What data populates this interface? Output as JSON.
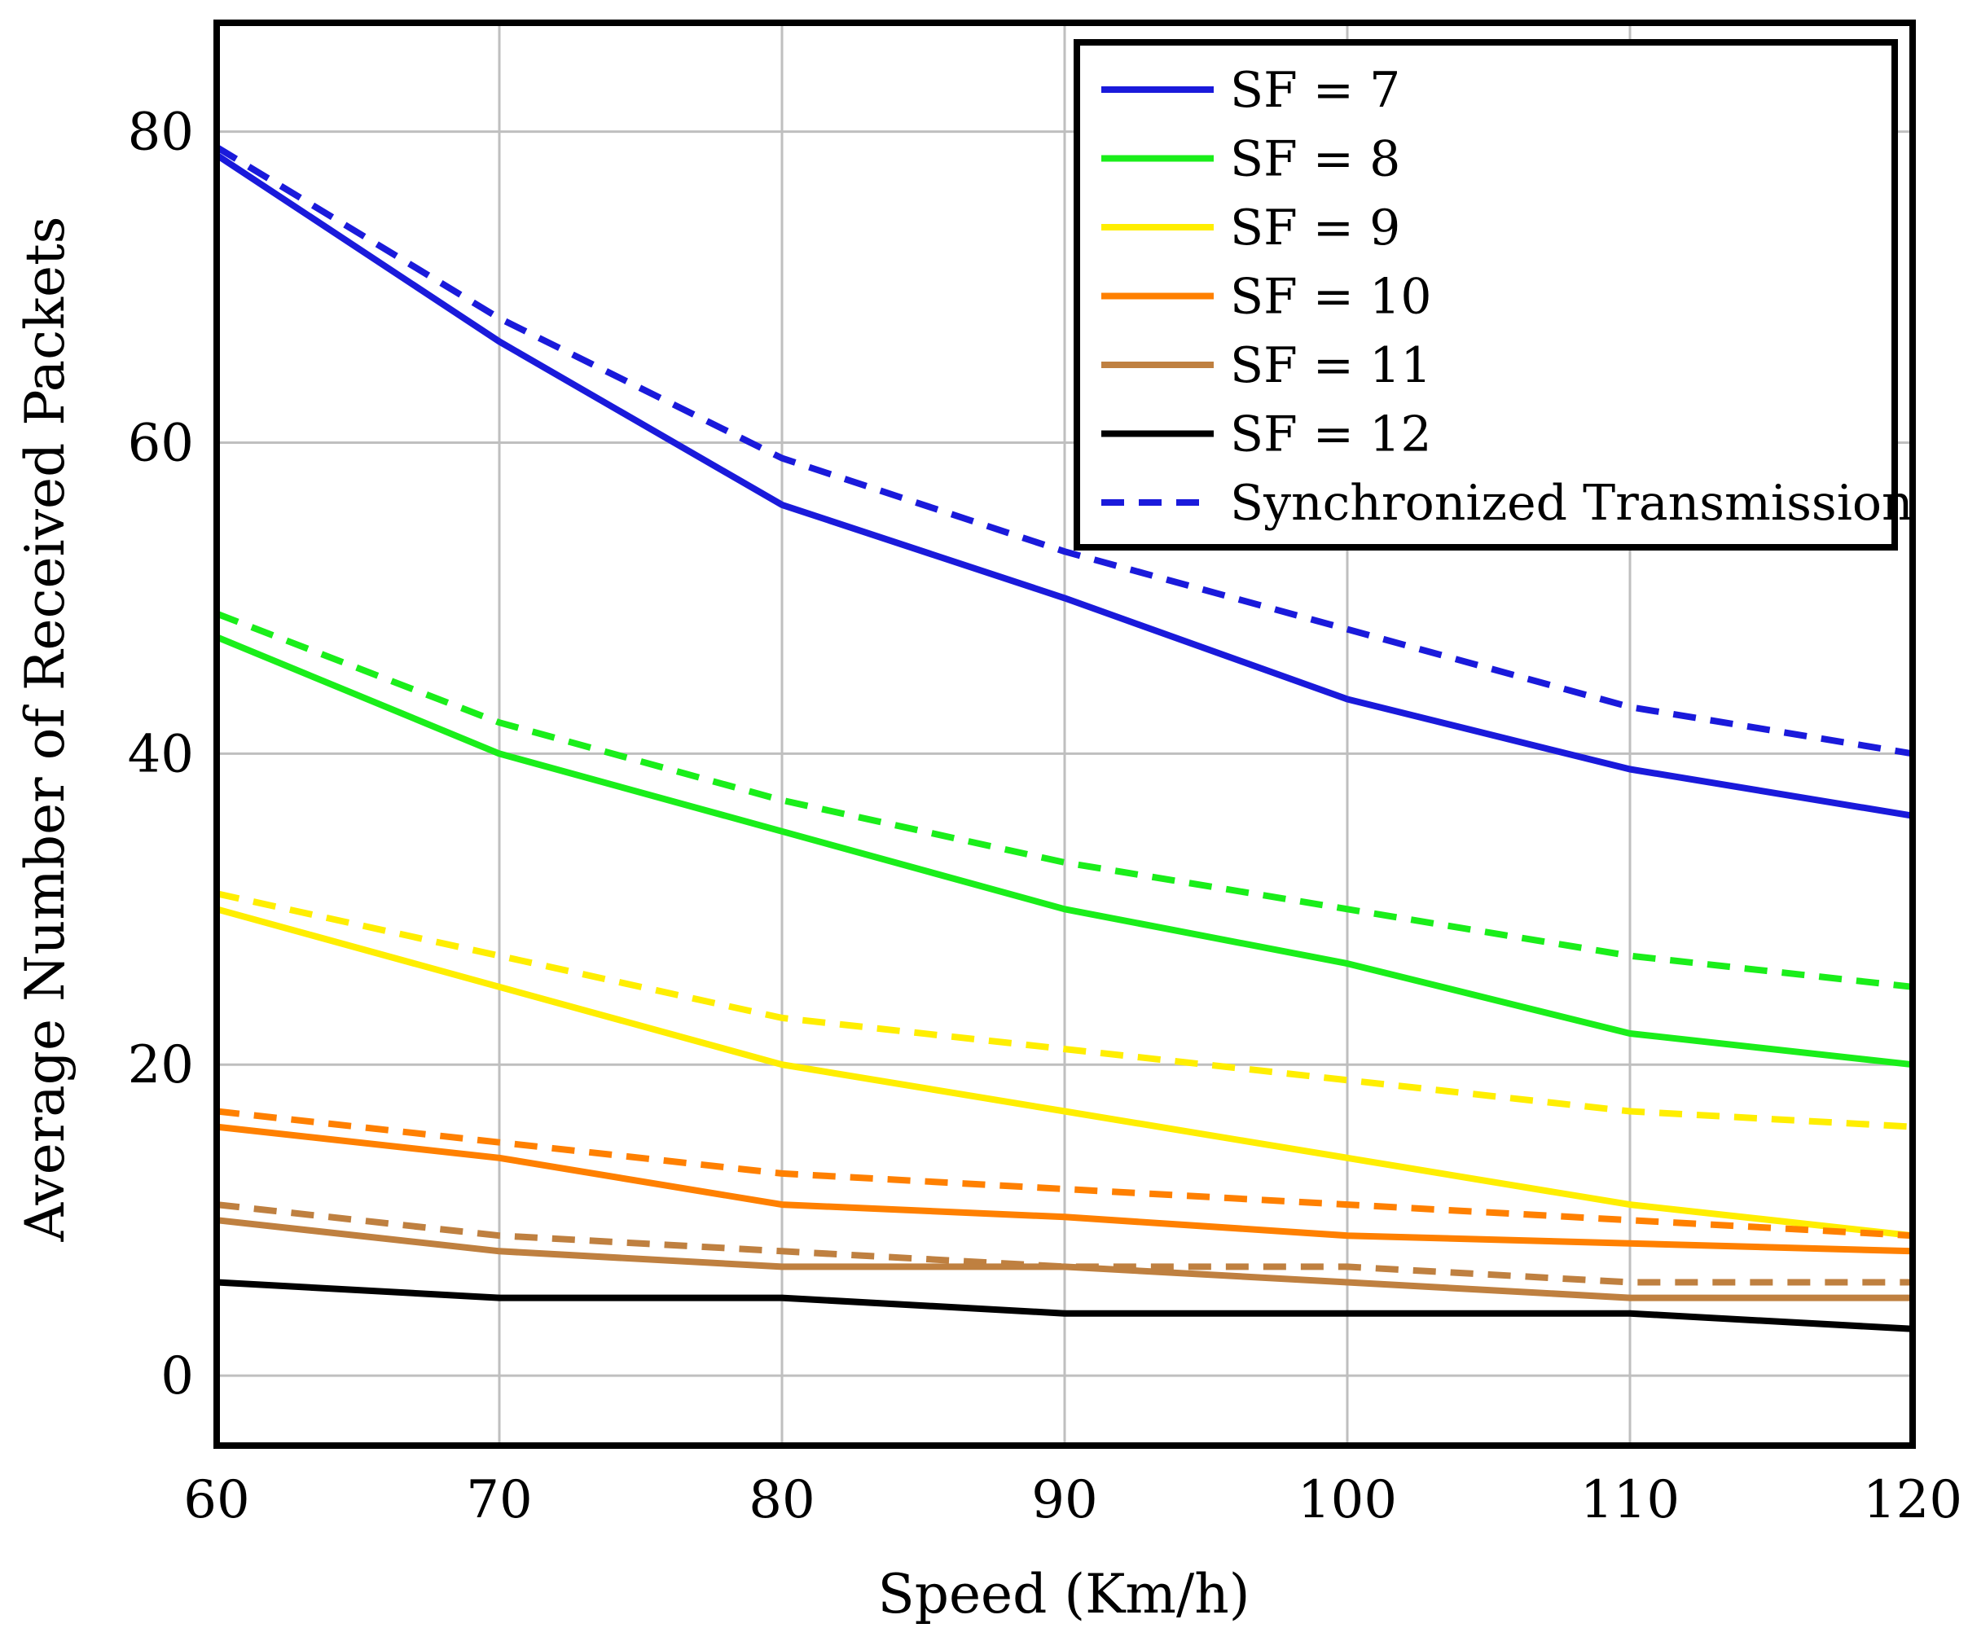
{
  "chart_data": {
    "type": "line",
    "xlabel": "Speed (Km/h)",
    "ylabel": "Average Number of Received Packets",
    "xlim": [
      60,
      120
    ],
    "ylim": [
      -4.5,
      87
    ],
    "grid": true,
    "legend_position": "top-right",
    "x": [
      60,
      70,
      80,
      90,
      100,
      110,
      120
    ],
    "xticks": [
      "60",
      "70",
      "80",
      "90",
      "100",
      "110",
      "120"
    ],
    "yticks": [
      "0",
      "20",
      "40",
      "60",
      "80"
    ],
    "series": [
      {
        "name": "SF = 7",
        "legend": "SF = 7",
        "color": "#1a1adb",
        "style": "solid",
        "values": [
          78.5,
          66.5,
          56,
          50,
          43.5,
          39,
          36
        ]
      },
      {
        "name": "SF = 8",
        "legend": "SF = 8",
        "color": "#1aee1a",
        "style": "solid",
        "values": [
          47.5,
          40,
          35,
          30,
          26.5,
          22,
          20
        ]
      },
      {
        "name": "SF = 9",
        "legend": "SF = 9",
        "color": "#ffee00",
        "style": "solid",
        "values": [
          30,
          25,
          20,
          17,
          14,
          11,
          9
        ]
      },
      {
        "name": "SF = 10",
        "legend": "SF = 10",
        "color": "#ff8000",
        "style": "solid",
        "values": [
          16,
          14,
          11,
          10.2,
          9,
          8.5,
          8
        ]
      },
      {
        "name": "SF = 11",
        "legend": "SF = 11",
        "color": "#bf8040",
        "style": "solid",
        "values": [
          10,
          8,
          7,
          7,
          6,
          5,
          5
        ]
      },
      {
        "name": "SF = 12",
        "legend": "SF = 12",
        "color": "#000000",
        "style": "solid",
        "values": [
          6,
          5,
          5,
          4,
          4,
          4,
          3
        ]
      },
      {
        "name": "SF = 7 synchronized",
        "legend": "Synchronized Transmission",
        "color": "#1a1adb",
        "style": "dashed",
        "values": [
          79,
          68,
          59,
          53,
          48,
          43,
          40
        ]
      },
      {
        "name": "SF = 8 synchronized",
        "legend": "",
        "color": "#1aee1a",
        "style": "dashed",
        "values": [
          49,
          42,
          37,
          33,
          30,
          27,
          25
        ]
      },
      {
        "name": "SF = 9 synchronized",
        "legend": "",
        "color": "#ffee00",
        "style": "dashed",
        "values": [
          31,
          27,
          23,
          21,
          19,
          17,
          16
        ]
      },
      {
        "name": "SF = 10 synchronized",
        "legend": "",
        "color": "#ff8000",
        "style": "dashed",
        "values": [
          17,
          15,
          13,
          12,
          11,
          10,
          9
        ]
      },
      {
        "name": "SF = 11 synchronized",
        "legend": "",
        "color": "#bf8040",
        "style": "dashed",
        "values": [
          11,
          9,
          8,
          7,
          7,
          6,
          6
        ]
      }
    ]
  }
}
